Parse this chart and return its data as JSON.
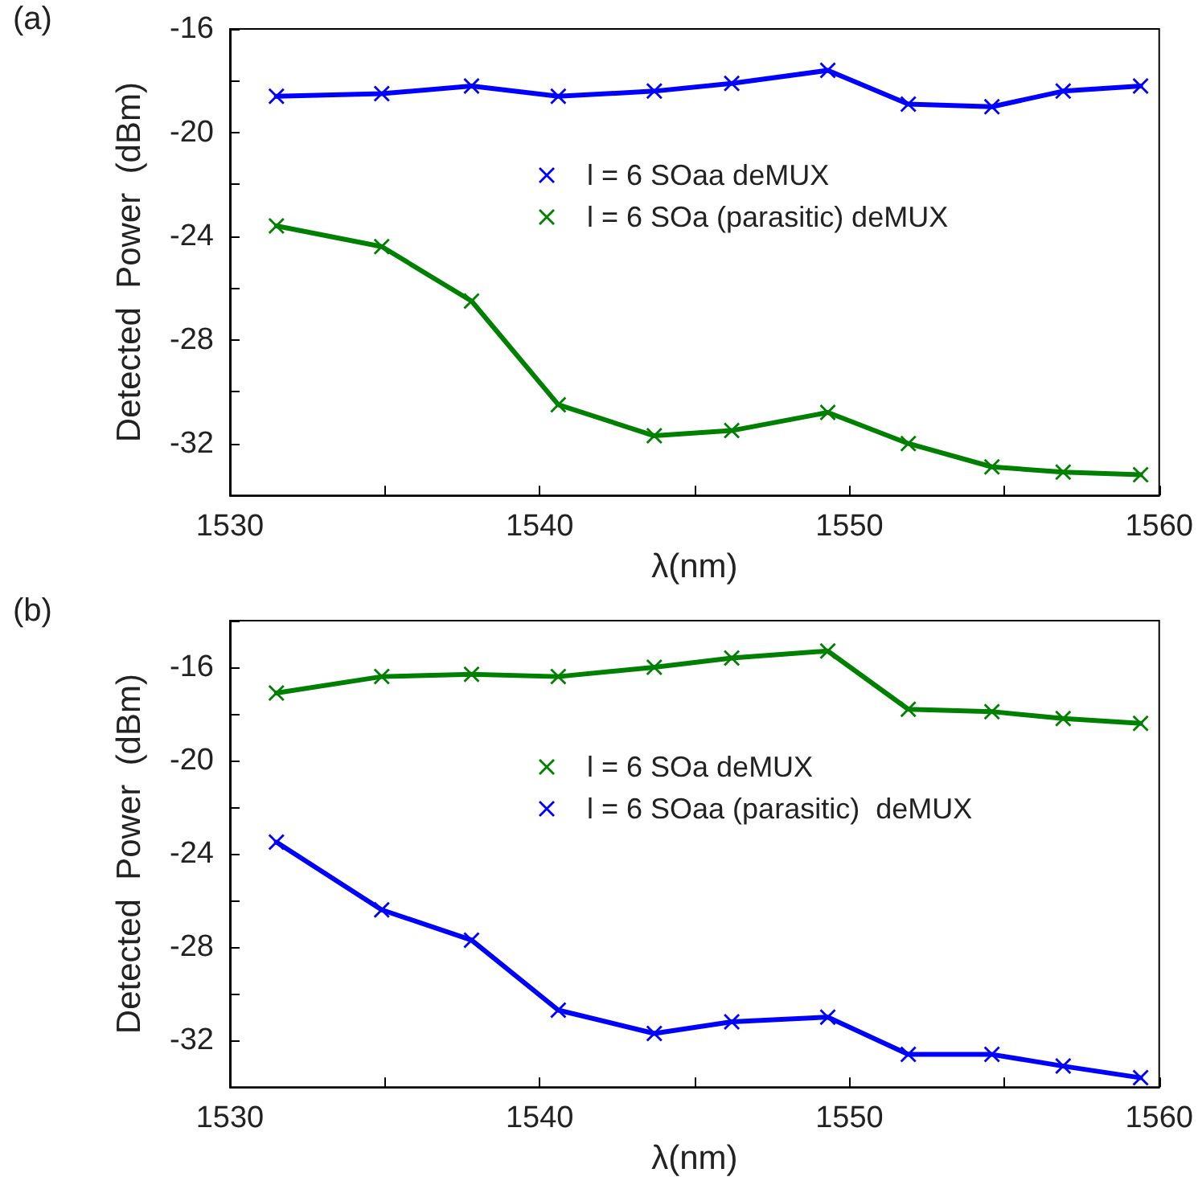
{
  "chart_data": [
    {
      "type": "line",
      "xlabel": "λ(nm)",
      "ylabel": "Detected  Power  (dBm)",
      "annotations": [
        "(a)"
      ],
      "x": [
        1531.5,
        1534.9,
        1537.8,
        1540.6,
        1543.7,
        1546.2,
        1549.3,
        1551.9,
        1554.6,
        1556.9,
        1559.4
      ],
      "series": [
        {
          "name": "l = 6 SOaa deMUX",
          "color": "#0000ff",
          "values": [
            -18.6,
            -18.5,
            -18.2,
            -18.6,
            -18.4,
            -18.1,
            -17.6,
            -18.9,
            -19.0,
            -18.4,
            -18.2
          ]
        },
        {
          "name": "l = 6 SOa (parasitic) deMUX",
          "color": "#008000",
          "values": [
            -23.6,
            -24.4,
            -26.5,
            -30.5,
            -31.7,
            -31.5,
            -30.8,
            -32.0,
            -32.9,
            -33.1,
            -33.2
          ]
        }
      ],
      "xlim": [
        1530,
        1560
      ],
      "xticks": [
        1530,
        {
          "value": 1535,
          "label": null
        },
        1540,
        {
          "value": 1545,
          "label": null
        },
        1550,
        {
          "value": 1555,
          "label": null
        },
        1560
      ],
      "ylim": [
        -34,
        -16
      ],
      "yticks": [
        {
          "value": -34,
          "label": null
        },
        -32,
        {
          "value": -30,
          "label": null
        },
        -28,
        {
          "value": -26,
          "label": null
        },
        -24,
        {
          "value": -22,
          "label": null
        },
        -20,
        {
          "value": -18,
          "label": null
        },
        -16
      ],
      "grid": false,
      "legend": "right",
      "marker": "cross",
      "line_style": "solid"
    },
    {
      "type": "line",
      "xlabel": "λ(nm)",
      "ylabel": "Detected  Power  (dBm)",
      "annotations": [
        "(b)"
      ],
      "x": [
        1531.5,
        1534.9,
        1537.8,
        1540.6,
        1543.7,
        1546.2,
        1549.3,
        1551.9,
        1554.6,
        1556.9,
        1559.4
      ],
      "series": [
        {
          "name": "l = 6 SOa deMUX",
          "color": "#008000",
          "values": [
            -17.1,
            -16.4,
            -16.3,
            -16.4,
            -16.0,
            -15.6,
            -15.3,
            -17.8,
            -17.9,
            -18.2,
            -18.4
          ]
        },
        {
          "name": "l = 6 SOaa (parasitic)  deMUX",
          "color": "#0000ff",
          "values": [
            -23.5,
            -26.4,
            -27.7,
            -30.7,
            -31.7,
            -31.2,
            -31.0,
            -32.6,
            -32.6,
            -33.1,
            -33.6
          ]
        }
      ],
      "xlim": [
        1530,
        1560
      ],
      "xticks": [
        1530,
        {
          "value": 1535,
          "label": null
        },
        1540,
        {
          "value": 1545,
          "label": null
        },
        1550,
        {
          "value": 1555,
          "label": null
        },
        1560
      ],
      "ylim": [
        -34,
        -14
      ],
      "yticks": [
        {
          "value": -34,
          "label": null
        },
        -32,
        {
          "value": -30,
          "label": null
        },
        -28,
        {
          "value": -26,
          "label": null
        },
        -24,
        {
          "value": -22,
          "label": null
        },
        -20,
        {
          "value": -18,
          "label": null
        },
        -16,
        {
          "value": -14,
          "label": null
        }
      ],
      "grid": false,
      "legend": "right",
      "marker": "cross",
      "line_style": "solid"
    }
  ]
}
